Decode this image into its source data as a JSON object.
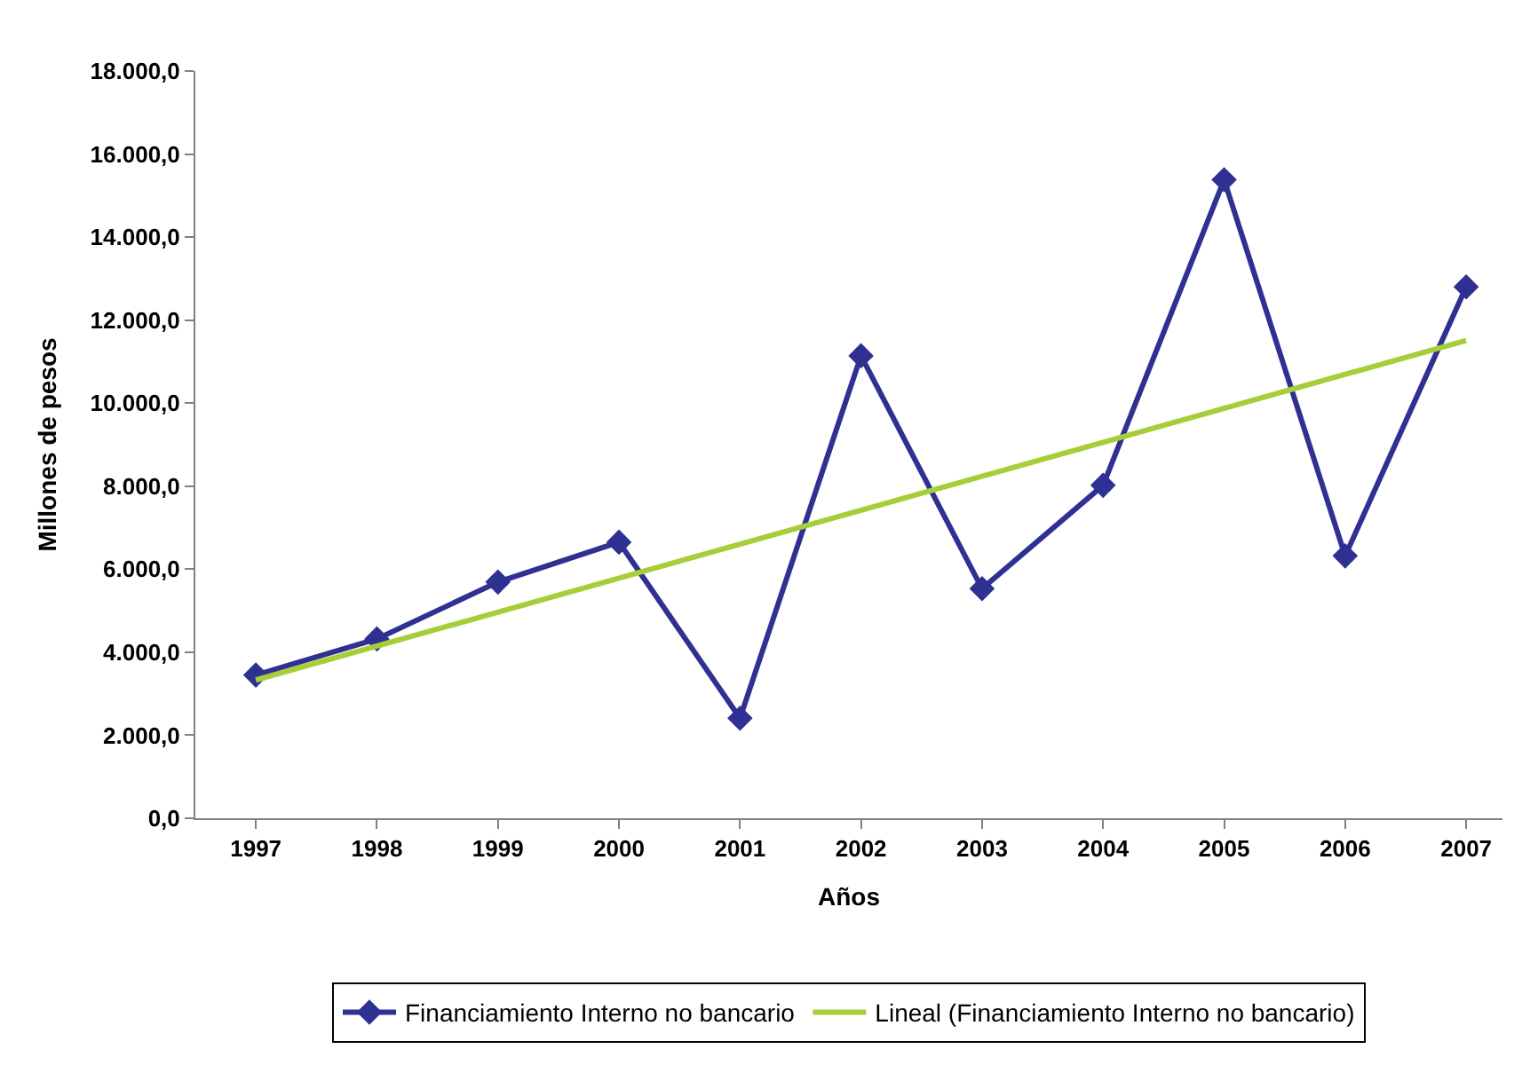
{
  "chart_data": {
    "type": "line",
    "xlabel": "Años",
    "ylabel": "Millones de pesos",
    "x": [
      1997,
      1998,
      1999,
      2000,
      2001,
      2002,
      2003,
      2004,
      2005,
      2006,
      2007
    ],
    "xlim": [
      1996.5,
      2007.3
    ],
    "xticks": [
      1997,
      1998,
      1999,
      2000,
      2001,
      2002,
      2003,
      2004,
      2005,
      2006,
      2007
    ],
    "ylim": [
      0,
      18000
    ],
    "yticks": [
      {
        "value": 0,
        "label": "0,0"
      },
      {
        "value": 2000,
        "label": "2.000,0"
      },
      {
        "value": 4000,
        "label": "4.000,0"
      },
      {
        "value": 6000,
        "label": "6.000,0"
      },
      {
        "value": 8000,
        "label": "8.000,0"
      },
      {
        "value": 10000,
        "label": "10.000,0"
      },
      {
        "value": 12000,
        "label": "12.000,0"
      },
      {
        "value": 14000,
        "label": "14.000,0"
      },
      {
        "value": 16000,
        "label": "16.000,0"
      },
      {
        "value": 18000,
        "label": "18.000,0"
      }
    ],
    "legend": "bottom",
    "series": [
      {
        "name": "Financiamiento Interno no bancario",
        "color": "#2e3192",
        "marker": "diamond",
        "values": [
          3450,
          4320,
          5690,
          6650,
          2410,
          11140,
          5530,
          8020,
          15380,
          6320,
          12800
        ]
      },
      {
        "name": "Lineal (Financiamiento Interno no bancario)",
        "color": "#a6ce39",
        "type": "line",
        "marker": "none",
        "x": [
          1997,
          2007
        ],
        "values": [
          3330,
          11510
        ]
      }
    ]
  }
}
